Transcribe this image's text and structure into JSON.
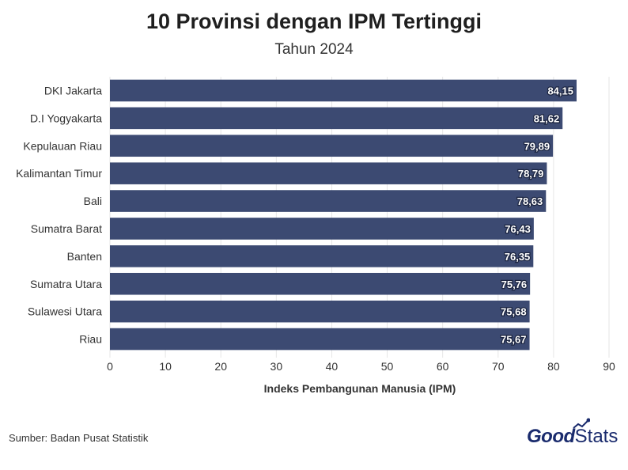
{
  "chart_data": {
    "type": "bar",
    "orientation": "horizontal",
    "title": "10 Provinsi dengan IPM Tertinggi",
    "subtitle": "Tahun 2024",
    "xlabel": "Indeks Pembangunan Manusia (IPM)",
    "ylabel": "",
    "categories": [
      "DKI Jakarta",
      "D.I Yogyakarta",
      "Kepulauan Riau",
      "Kalimantan Timur",
      "Bali",
      "Sumatra Barat",
      "Banten",
      "Sumatra Utara",
      "Sulawesi Utara",
      "Riau"
    ],
    "values": [
      84.15,
      81.62,
      79.89,
      78.79,
      78.63,
      76.43,
      76.35,
      75.76,
      75.68,
      75.67
    ],
    "value_labels": [
      "84,15",
      "81,62",
      "79,89",
      "78,79",
      "78,63",
      "76,43",
      "76,35",
      "75,76",
      "75,68",
      "75,67"
    ],
    "xlim": [
      0,
      90
    ],
    "xticks": [
      0,
      10,
      20,
      30,
      40,
      50,
      60,
      70,
      80,
      90
    ],
    "grid": true,
    "legend": "none",
    "bar_color": "#3c4a72"
  },
  "source": "Sumber: Badan Pusat Statistik",
  "brand": {
    "part1": "Good",
    "part2": "Stats",
    "color": "#1a2b6d"
  }
}
